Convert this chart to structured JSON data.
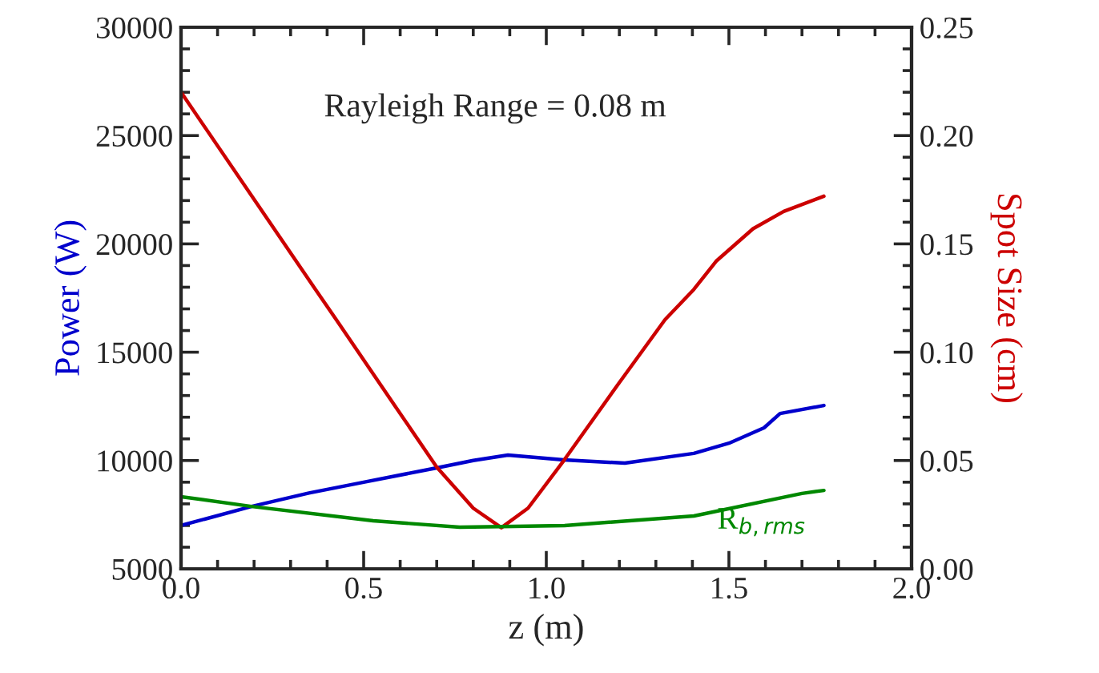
{
  "chart_data": {
    "type": "line",
    "xlabel": "z (m)",
    "ylabel": "Power (W)",
    "y2label": "Spot Size (cm)",
    "annotations": [
      "Rayleigh Range = 0.08 m"
    ],
    "xlim": [
      0,
      2
    ],
    "xticks": [
      {
        "value": 0,
        "label": "0.0"
      },
      {
        "value": 0.5,
        "label": "0.5"
      },
      {
        "value": 1,
        "label": "1.0"
      },
      {
        "value": 1.5,
        "label": "1.5"
      },
      {
        "value": 2,
        "label": "2.0"
      }
    ],
    "ylim": [
      5000,
      30000
    ],
    "yticks": [
      5000,
      10000,
      15000,
      20000,
      25000,
      30000
    ],
    "y2lim": [
      0,
      0.25
    ],
    "y2ticks": [
      {
        "value": 0,
        "label": "0.00"
      },
      {
        "value": 0.05,
        "label": "0.05"
      },
      {
        "value": 0.1,
        "label": "0.10"
      },
      {
        "value": 0.15,
        "label": "0.15"
      },
      {
        "value": 0.2,
        "label": "0.20"
      },
      {
        "value": 0.25,
        "label": "0.25"
      }
    ],
    "grid": false,
    "legend": false,
    "marker": "none",
    "line_style": "solid",
    "series": [
      {
        "color": "#0000cc",
        "x": [
          0,
          0.193,
          0.35,
          0.5,
          0.7,
          0.8,
          0.895,
          1.048,
          1.215,
          1.404,
          1.5,
          1.596,
          1.64,
          1.76
        ],
        "values": [
          7000,
          7880,
          8500,
          9000,
          9660,
          10000,
          10250,
          10030,
          9880,
          10330,
          10800,
          11510,
          12170,
          12540
        ]
      },
      {
        "color": "#cc0000",
        "axis": "y2",
        "x": [
          0,
          0.368,
          0.425,
          0.55,
          0.7,
          0.8,
          0.877,
          0.95,
          1.048,
          1.2,
          1.325,
          1.404,
          1.465,
          1.566,
          1.65,
          1.76
        ],
        "values": [
          0.22,
          0.129,
          0.115,
          0.084,
          0.047,
          0.028,
          0.019,
          0.028,
          0.05,
          0.086,
          0.115,
          0.129,
          0.142,
          0.157,
          0.165,
          0.172
        ]
      },
      {
        "name": "R$_{b,rms}$",
        "color": "#008800",
        "axis": "y2",
        "x": [
          0,
          0.193,
          0.526,
          0.763,
          0.877,
          1.05,
          1.404,
          1.7,
          1.76
        ],
        "values": [
          0.0333,
          0.0288,
          0.0222,
          0.0192,
          0.0195,
          0.02,
          0.0244,
          0.0348,
          0.0362
        ]
      }
    ]
  }
}
